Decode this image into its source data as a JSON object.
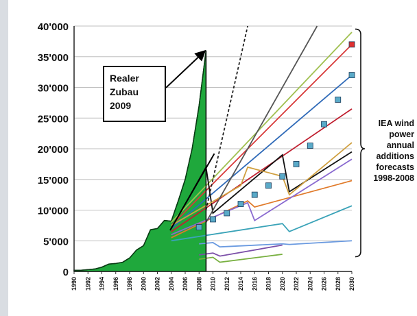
{
  "chart_data": {
    "type": "line",
    "x_range": [
      1990,
      2030
    ],
    "ylim": [
      0,
      40000
    ],
    "y_ticks": [
      {
        "value": 0,
        "label": "0"
      },
      {
        "value": 5000,
        "label": "5'000"
      },
      {
        "value": 10000,
        "label": "10'000"
      },
      {
        "value": 15000,
        "label": "15'000"
      },
      {
        "value": 20000,
        "label": "20'000"
      },
      {
        "value": 25000,
        "label": "25'000"
      },
      {
        "value": 30000,
        "label": "30'000"
      },
      {
        "value": 35000,
        "label": "35'000"
      },
      {
        "value": 40000,
        "label": "40'000"
      }
    ],
    "x_ticks": [
      "1990",
      "1992",
      "1994",
      "1996",
      "1998",
      "2000",
      "2002",
      "2004",
      "2006",
      "2008",
      "2010",
      "2012",
      "2014",
      "2016",
      "2018",
      "2020",
      "2022",
      "2024",
      "2026",
      "2028",
      "2030"
    ],
    "grid": true,
    "actual": {
      "color": "#1fa83c",
      "x": [
        1990,
        1991,
        1992,
        1993,
        1994,
        1995,
        1996,
        1997,
        1998,
        1999,
        2000,
        2001,
        2002,
        2003,
        2004,
        2005,
        2006,
        2007,
        2008,
        2009
      ],
      "y": [
        200,
        200,
        300,
        400,
        700,
        1200,
        1300,
        1500,
        2200,
        3500,
        4200,
        6800,
        7000,
        8300,
        8200,
        11500,
        15000,
        20000,
        27000,
        36000
      ]
    },
    "series": [
      {
        "color": "#6a9ae0",
        "dash": "",
        "x": [
          2008,
          2010,
          2011,
          2020,
          2021,
          2030
        ],
        "y": [
          4500,
          4700,
          4000,
          4500,
          4400,
          5000
        ]
      },
      {
        "color": "#7b4fa8",
        "dash": "",
        "x": [
          2008,
          2010,
          2011,
          2020
        ],
        "y": [
          2700,
          3000,
          2500,
          4300
        ]
      },
      {
        "color": "#78b040",
        "dash": "",
        "x": [
          2008,
          2010,
          2011,
          2020
        ],
        "y": [
          2000,
          2300,
          1500,
          2800
        ]
      },
      {
        "color": "#3aa3b8",
        "dash": "",
        "x": [
          2004,
          2020,
          2021,
          2030
        ],
        "y": [
          5000,
          7800,
          6500,
          10700
        ]
      },
      {
        "color": "#e07a2a",
        "dash": "",
        "x": [
          2004,
          2015,
          2016,
          2030
        ],
        "y": [
          5500,
          11500,
          10500,
          14800
        ]
      },
      {
        "color": "#8a6ad0",
        "dash": "",
        "x": [
          2004,
          2015,
          2016,
          2030
        ],
        "y": [
          6000,
          11200,
          8300,
          18300
        ]
      },
      {
        "color": "#c02030",
        "dash": "",
        "x": [
          2004,
          2030
        ],
        "y": [
          6500,
          26500
        ]
      },
      {
        "color": "#2f6ab8",
        "dash": "",
        "x": [
          2004,
          2030
        ],
        "y": [
          7000,
          32000
        ]
      },
      {
        "color": "#d83a3a",
        "dash": "",
        "x": [
          2004,
          2030
        ],
        "y": [
          7500,
          37000
        ]
      },
      {
        "color": "#a0c050",
        "dash": "",
        "x": [
          2004,
          2030
        ],
        "y": [
          8000,
          39000
        ]
      },
      {
        "color": "#111111",
        "dash": "",
        "x": [
          2004,
          2009,
          2010,
          2020,
          2021,
          2030
        ],
        "y": [
          7000,
          17000,
          9500,
          19000,
          13000,
          19500
        ]
      },
      {
        "color": "#d0a040",
        "dash": "",
        "x": [
          2004,
          2014,
          2015,
          2020,
          2021,
          2030
        ],
        "y": [
          7500,
          14000,
          17000,
          15500,
          12500,
          21000
        ]
      },
      {
        "color": "#222222",
        "dash": "4,3",
        "x": [
          2009,
          2015
        ],
        "y": [
          10000,
          40000
        ]
      },
      {
        "color": "#555555",
        "dash": "",
        "x": [
          2009,
          2025
        ],
        "y": [
          8000,
          40000
        ]
      }
    ],
    "markers": [
      {
        "color": "#5aaac8",
        "shape": "square",
        "x": [
          2008,
          2010,
          2012,
          2014,
          2016,
          2018,
          2020,
          2022,
          2024,
          2026,
          2028,
          2030
        ],
        "y": [
          7200,
          8500,
          9500,
          11000,
          12500,
          14000,
          15500,
          17500,
          20500,
          24000,
          28000,
          32000
        ]
      },
      {
        "color": "#e03030",
        "shape": "square",
        "x": [
          2030
        ],
        "y": [
          37000
        ]
      }
    ],
    "annotation_box": [
      "Realer",
      "Zubau",
      "2009"
    ],
    "side_label": [
      "IEA wind",
      "power",
      "annual",
      "additions",
      "forecasts",
      "1998-2008"
    ]
  }
}
